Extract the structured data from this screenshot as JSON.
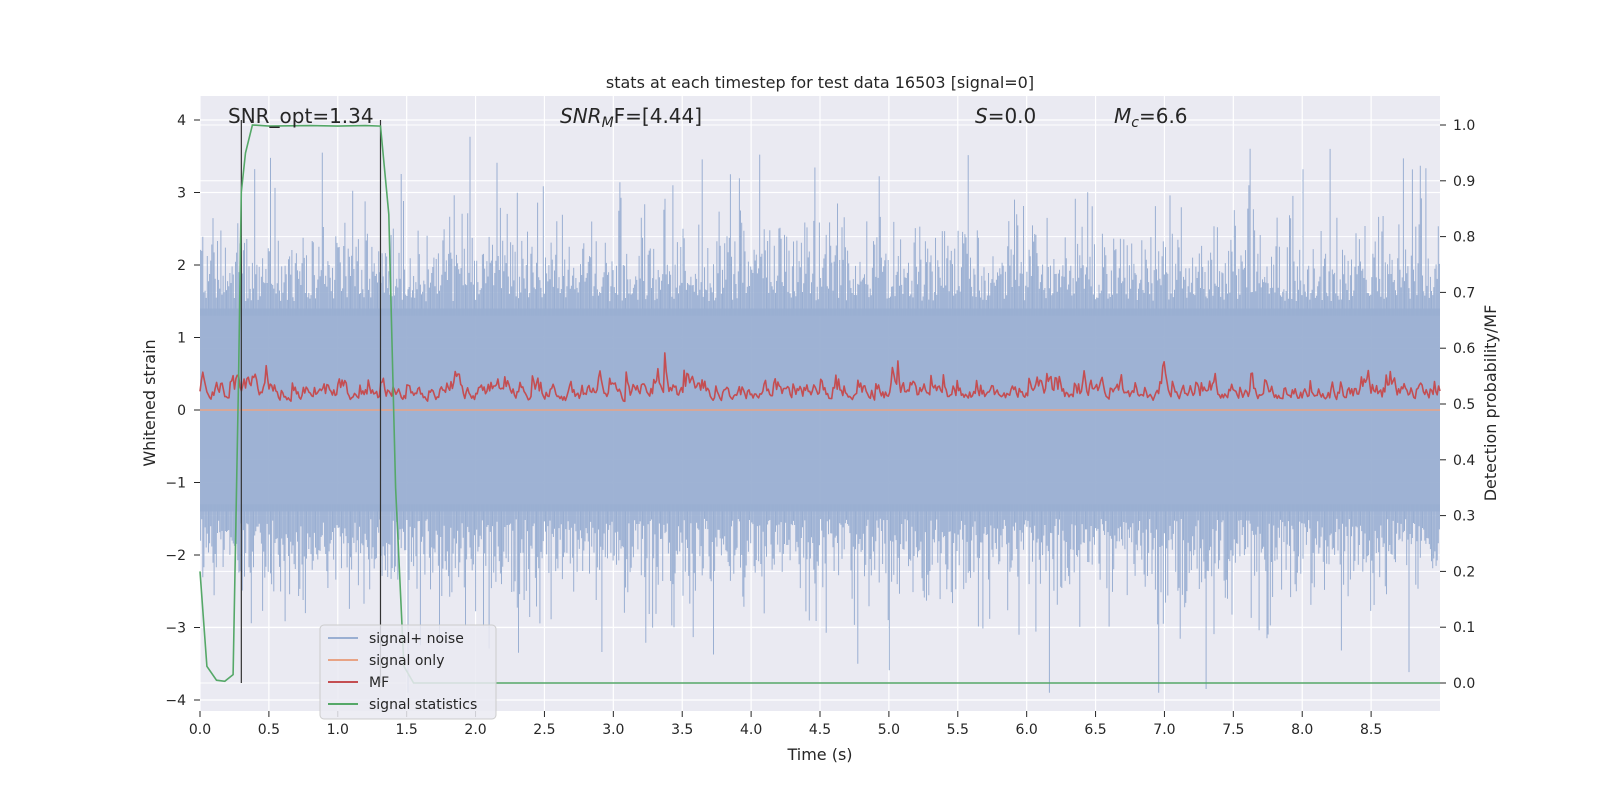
{
  "chart_data": {
    "type": "line",
    "title": "stats at each timestep for test data 16503 [signal=0]",
    "xlabel": "Time (s)",
    "ylabel": "Whitened strain",
    "y2label": "Detection probability/MF",
    "xlim": [
      0.0,
      9.0
    ],
    "ylim": [
      -4.0,
      4.0
    ],
    "y2lim": [
      0.0,
      1.0
    ],
    "x_ticks": [
      "0.0",
      "0.5",
      "1.0",
      "1.5",
      "2.0",
      "2.5",
      "3.0",
      "3.5",
      "4.0",
      "4.5",
      "5.0",
      "5.5",
      "6.0",
      "6.5",
      "7.0",
      "7.5",
      "8.0",
      "8.5"
    ],
    "y_ticks": [
      "4",
      "3",
      "2",
      "1",
      "0",
      "−1",
      "−2",
      "−3",
      "−4"
    ],
    "y2_ticks": [
      "1.0",
      "0.9",
      "0.8",
      "0.7",
      "0.6",
      "0.5",
      "0.4",
      "0.3",
      "0.2",
      "0.1",
      "0.0"
    ],
    "annotations": {
      "snr_opt": "SNR_opt=1.34",
      "snr_mf_label": "SNR",
      "snr_mf_sub": "M",
      "snr_mf_rest": "F=[4.44]",
      "s_label": "S",
      "s_rest": "=0.0",
      "mc_label": "M",
      "mc_sub": "c",
      "mc_rest": "=6.6"
    },
    "detection_window": [
      0.3,
      1.31
    ],
    "series": [
      {
        "name": "signal+ noise",
        "color": "#9aafd2",
        "axis": "left",
        "band": [
          -4.0,
          4.0
        ],
        "typical_envelope": [
          -2.0,
          2.0
        ]
      },
      {
        "name": "signal only",
        "color": "#e8a385",
        "axis": "left",
        "values_constant": 0.0
      },
      {
        "name": "MF",
        "color": "#c44e52",
        "axis": "right",
        "typical_range": [
          0.5,
          0.62
        ],
        "peak": 0.6
      },
      {
        "name": "signal statistics",
        "color": "#55a868",
        "axis": "right",
        "x": [
          0.0,
          0.05,
          0.12,
          0.18,
          0.24,
          0.28,
          0.3,
          0.33,
          0.38,
          0.5,
          0.8,
          1.0,
          1.2,
          1.31,
          1.37,
          1.42,
          1.48,
          1.55,
          1.7,
          2.0,
          9.0
        ],
        "y": [
          0.2,
          0.03,
          0.005,
          0.003,
          0.015,
          0.55,
          0.88,
          0.95,
          1.0,
          0.998,
          0.999,
          0.998,
          0.999,
          0.998,
          0.84,
          0.35,
          0.03,
          0.0,
          0.0,
          0.0,
          0.0
        ]
      }
    ],
    "legend": {
      "location": "lower-left",
      "entries": [
        {
          "label": "signal+ noise",
          "color": "#9aafd2"
        },
        {
          "label": "signal only",
          "color": "#e8a385"
        },
        {
          "label": "MF",
          "color": "#c44e52"
        },
        {
          "label": "signal statistics",
          "color": "#55a868"
        }
      ]
    }
  }
}
